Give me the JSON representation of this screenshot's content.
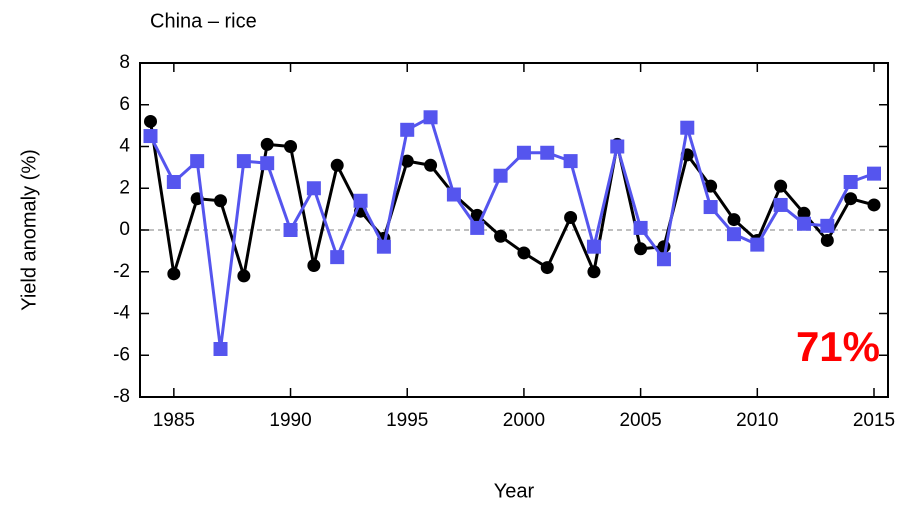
{
  "chart_data": {
    "type": "line",
    "title": "China – rice",
    "x_label": "Year",
    "y_label": "Yield anomaly (%)",
    "annotation": "71%",
    "annotation_color": "#ff0000",
    "x": [
      1984,
      1985,
      1986,
      1987,
      1988,
      1989,
      1990,
      1991,
      1992,
      1993,
      1994,
      1995,
      1996,
      1997,
      1998,
      1999,
      2000,
      2001,
      2002,
      2003,
      2004,
      2005,
      2006,
      2007,
      2008,
      2009,
      2010,
      2011,
      2012,
      2013,
      2014,
      2015
    ],
    "series": [
      {
        "color": "#000000",
        "marker": "circle",
        "values": [
          5.2,
          -2.1,
          1.5,
          1.4,
          -2.2,
          4.1,
          4.0,
          -1.7,
          3.1,
          0.9,
          -0.4,
          3.3,
          3.1,
          1.7,
          0.7,
          -0.3,
          -1.1,
          -1.8,
          0.6,
          -2.0,
          4.1,
          -0.9,
          -0.8,
          3.6,
          2.1,
          0.5,
          -0.5,
          2.1,
          0.8,
          -0.5,
          1.5,
          1.2
        ]
      },
      {
        "color": "#5555ee",
        "marker": "square",
        "values": [
          4.5,
          2.3,
          3.3,
          -5.7,
          3.3,
          3.2,
          0.0,
          2.0,
          -1.3,
          1.4,
          -0.8,
          4.8,
          5.4,
          1.7,
          0.1,
          2.6,
          3.7,
          3.7,
          3.3,
          -0.8,
          4.0,
          0.1,
          -1.4,
          4.9,
          1.1,
          -0.2,
          -0.7,
          1.2,
          0.3,
          0.2,
          2.3,
          2.7
        ]
      }
    ],
    "xlim": [
      1983.55,
      2015.6
    ],
    "xticks": [
      1985,
      1990,
      1995,
      2000,
      2005,
      2010,
      2015
    ],
    "ylim": [
      -8,
      8
    ],
    "yticks": [
      -8,
      -6,
      -4,
      -2,
      0,
      2,
      4,
      6,
      8
    ],
    "zero_line": true
  }
}
